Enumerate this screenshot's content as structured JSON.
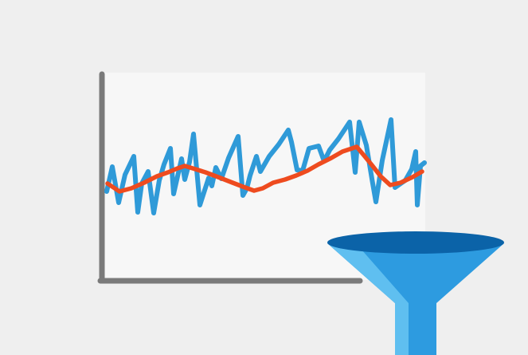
{
  "illustration": {
    "subject": "filter-icon",
    "colors": {
      "background": "#efefef",
      "chart_panel": "#f7f7f7",
      "axis": "#7a7a7a",
      "raw_signal": "#2f9ad8",
      "smoothed_signal": "#ee4b1f",
      "funnel_top": "#0b63a8",
      "funnel_outer": "#2d9be0",
      "funnel_inner": "#3fb0ef",
      "funnel_highlight": "#5fbff0"
    }
  }
}
